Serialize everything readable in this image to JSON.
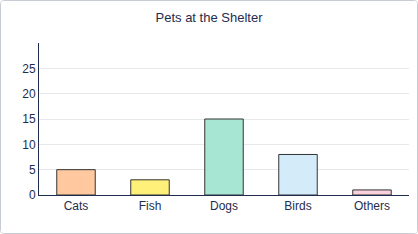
{
  "chart_data": {
    "type": "bar",
    "title": "Pets at the Shelter",
    "categories": [
      "Cats",
      "Fish",
      "Dogs",
      "Birds",
      "Others"
    ],
    "values": [
      5,
      3,
      15,
      8,
      1
    ],
    "colors": [
      "#ffc89e",
      "#fff07a",
      "#a8e6d4",
      "#d4ecfa",
      "#f9d0dc"
    ],
    "ylim": [
      0,
      30
    ],
    "yticks": [
      0,
      5,
      10,
      15,
      20,
      25
    ],
    "grid": true
  }
}
